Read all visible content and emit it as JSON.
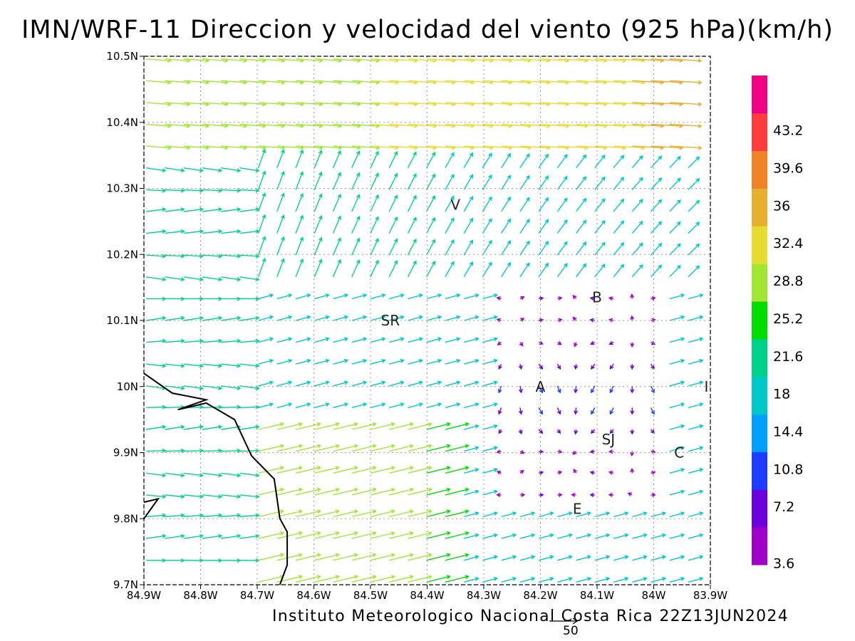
{
  "title": "IMN/WRF-11 Direccion y velocidad del viento (925 hPa)(km/h)",
  "footer": "Instituto Meteorologico Nacional Costa Rica 22Z13JUN2024",
  "reference_vector": {
    "label": "50",
    "value": 50
  },
  "axes": {
    "x_ticks": [
      "84.9W",
      "84.8W",
      "84.7W",
      "84.6W",
      "84.5W",
      "84.4W",
      "84.3W",
      "84.2W",
      "84.1W",
      "84W",
      "83.9W"
    ],
    "y_ticks": [
      "9.7N",
      "9.8N",
      "9.9N",
      "10N",
      "10.1N",
      "10.2N",
      "10.3N",
      "10.4N",
      "10.5N"
    ],
    "lon_range": [
      -84.9,
      -83.9
    ],
    "lat_range": [
      9.7,
      10.5
    ],
    "grid": true
  },
  "colorbar": {
    "labels": [
      "3.6",
      "7.2",
      "10.8",
      "14.4",
      "18",
      "21.6",
      "25.2",
      "28.8",
      "32.4",
      "36",
      "39.6",
      "43.2"
    ],
    "colors": [
      "#a000c8",
      "#6e00dc",
      "#1e3cff",
      "#00a0ff",
      "#00c8c8",
      "#00d28c",
      "#00dc00",
      "#a0e632",
      "#e6dc32",
      "#e6af2d",
      "#f08228",
      "#fa3c3c",
      "#f00082"
    ]
  },
  "places": [
    {
      "name": "V",
      "lon": -84.35,
      "lat": 10.275
    },
    {
      "name": "SR",
      "lon": -84.465,
      "lat": 10.1
    },
    {
      "name": "B",
      "lon": -84.1,
      "lat": 10.135
    },
    {
      "name": "A",
      "lon": -84.2,
      "lat": 10.0
    },
    {
      "name": "I",
      "lon": -83.907,
      "lat": 10.0
    },
    {
      "name": "SJ",
      "lon": -84.08,
      "lat": 9.92
    },
    {
      "name": "C",
      "lon": -83.955,
      "lat": 9.9
    },
    {
      "name": "E",
      "lon": -84.135,
      "lat": 9.815
    }
  ],
  "coastline": [
    [
      -84.9,
      10.02
    ],
    [
      -84.85,
      9.99
    ],
    [
      -84.79,
      9.98
    ],
    [
      -84.84,
      9.965
    ],
    [
      -84.79,
      9.975
    ],
    [
      -84.74,
      9.95
    ],
    [
      -84.71,
      9.895
    ],
    [
      -84.67,
      9.86
    ],
    [
      -84.66,
      9.8
    ],
    [
      -84.647,
      9.78
    ],
    [
      -84.647,
      9.73
    ],
    [
      -84.66,
      9.7
    ]
  ],
  "coastline_small": [
    [
      -84.9,
      9.8
    ],
    [
      -84.875,
      9.83
    ],
    [
      -84.9,
      9.825
    ]
  ],
  "wind_field": {
    "description": "Wind barbs at 925 hPa",
    "regions": [
      {
        "area": "west coast",
        "speed_kmh": 24,
        "direction": "toward east"
      },
      {
        "area": "north",
        "speed_kmh": 31,
        "direction": "toward east"
      },
      {
        "area": "central valley",
        "speed_kmh": 8,
        "direction": "variable"
      },
      {
        "area": "southeast",
        "speed_kmh": 15,
        "direction": "toward east-northeast"
      }
    ]
  }
}
